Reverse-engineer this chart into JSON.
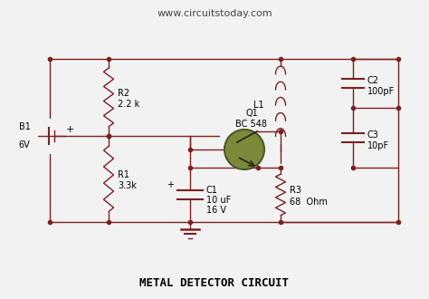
{
  "title": "METAL DETECTOR CIRCUIT",
  "website": "www.circuitstoday.com",
  "bg_color": "#f2f2f2",
  "line_color": "#7B2020",
  "dot_color": "#7B2020",
  "transistor_body": "#7B8A3A",
  "transistor_outline": "#4A5A2A",
  "labels": {
    "B1": "B1",
    "B1v": "6V",
    "R2": "R2",
    "R2v": "2.2 k",
    "R1": "R1",
    "R1v": "3.3k",
    "C1": "C1",
    "C1v": "10 uF",
    "C1v2": "16 V",
    "L1": "L1",
    "Q1": "Q1",
    "Q1t": "BC 548",
    "R3": "R3",
    "R3v": "68  Ohm",
    "C2": "C2",
    "C2v": "100pF",
    "C3": "C3",
    "C3v": "10pF"
  }
}
